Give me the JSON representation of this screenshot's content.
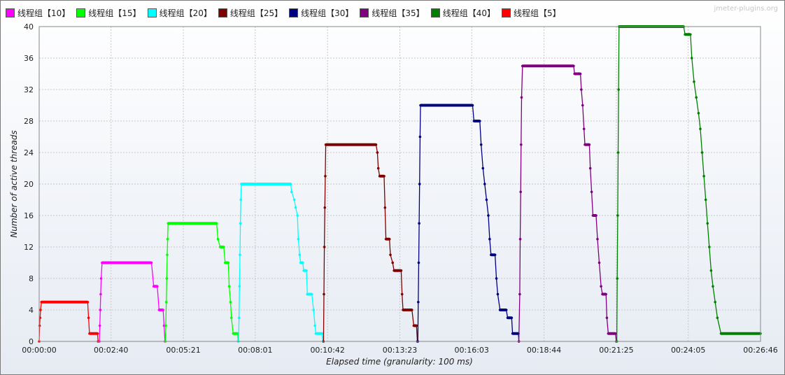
{
  "chart_data": {
    "type": "line",
    "title": "",
    "xlabel": "Elapsed time (granularity: 100 ms)",
    "ylabel": "Number of active threads",
    "watermark": "jmeter-plugins.org",
    "ylim": [
      0,
      40
    ],
    "y_ticks": [
      0,
      4,
      8,
      12,
      16,
      20,
      24,
      28,
      32,
      36,
      40
    ],
    "xlim_seconds": [
      0,
      1606
    ],
    "x_ticks": [
      {
        "t": 0,
        "label": "00:00:00"
      },
      {
        "t": 160,
        "label": "00:02:40"
      },
      {
        "t": 321,
        "label": "00:05:21"
      },
      {
        "t": 481,
        "label": "00:08:01"
      },
      {
        "t": 642,
        "label": "00:10:42"
      },
      {
        "t": 803,
        "label": "00:13:23"
      },
      {
        "t": 963,
        "label": "00:16:03"
      },
      {
        "t": 1124,
        "label": "00:18:44"
      },
      {
        "t": 1285,
        "label": "00:21:25"
      },
      {
        "t": 1445,
        "label": "00:24:05"
      },
      {
        "t": 1606,
        "label": "00:26:46"
      }
    ],
    "grid": true,
    "legend_position": "top",
    "series": [
      {
        "name": "线程组【10】",
        "color": "#ff00ff",
        "points": [
          [
            134,
            0
          ],
          [
            135,
            2
          ],
          [
            136,
            4
          ],
          [
            137,
            6
          ],
          [
            138,
            8
          ],
          [
            140,
            10
          ],
          [
            250,
            10
          ],
          [
            255,
            7
          ],
          [
            263,
            7
          ],
          [
            267,
            4
          ],
          [
            276,
            4
          ],
          [
            278,
            2
          ],
          [
            280,
            0
          ]
        ]
      },
      {
        "name": "线程组【15】",
        "color": "#00ff00",
        "points": [
          [
            281,
            0
          ],
          [
            282,
            2
          ],
          [
            283,
            5
          ],
          [
            284,
            8
          ],
          [
            285,
            11
          ],
          [
            286,
            13
          ],
          [
            287,
            15
          ],
          [
            395,
            15
          ],
          [
            398,
            13
          ],
          [
            403,
            12
          ],
          [
            411,
            12
          ],
          [
            414,
            10
          ],
          [
            421,
            10
          ],
          [
            423,
            7
          ],
          [
            426,
            5
          ],
          [
            428,
            3
          ],
          [
            432,
            1
          ],
          [
            442,
            1
          ],
          [
            443,
            0
          ]
        ]
      },
      {
        "name": "线程组【20】",
        "color": "#00ffff",
        "points": [
          [
            444,
            0
          ],
          [
            445,
            3
          ],
          [
            446,
            7
          ],
          [
            447,
            11
          ],
          [
            448,
            15
          ],
          [
            449,
            18
          ],
          [
            450,
            20
          ],
          [
            560,
            20
          ],
          [
            562,
            19
          ],
          [
            568,
            18
          ],
          [
            571,
            17
          ],
          [
            575,
            16
          ],
          [
            577,
            13
          ],
          [
            580,
            11
          ],
          [
            582,
            10
          ],
          [
            587,
            10
          ],
          [
            589,
            9
          ],
          [
            595,
            9
          ],
          [
            597,
            6
          ],
          [
            607,
            6
          ],
          [
            611,
            4
          ],
          [
            614,
            2
          ],
          [
            616,
            1
          ],
          [
            630,
            1
          ],
          [
            632,
            0
          ]
        ]
      },
      {
        "name": "线程组【25】",
        "color": "#800000",
        "points": [
          [
            633,
            0
          ],
          [
            634,
            6
          ],
          [
            635,
            12
          ],
          [
            636,
            17
          ],
          [
            637,
            21
          ],
          [
            638,
            25
          ],
          [
            750,
            25
          ],
          [
            753,
            24
          ],
          [
            755,
            22
          ],
          [
            758,
            21
          ],
          [
            768,
            21
          ],
          [
            770,
            17
          ],
          [
            772,
            13
          ],
          [
            780,
            13
          ],
          [
            782,
            11
          ],
          [
            787,
            10
          ],
          [
            790,
            9
          ],
          [
            806,
            9
          ],
          [
            808,
            6
          ],
          [
            810,
            4
          ],
          [
            830,
            4
          ],
          [
            834,
            2
          ],
          [
            840,
            2
          ],
          [
            842,
            0
          ]
        ]
      },
      {
        "name": "线程组【30】",
        "color": "#000080",
        "points": [
          [
            843,
            0
          ],
          [
            844,
            5
          ],
          [
            845,
            10
          ],
          [
            846,
            15
          ],
          [
            847,
            20
          ],
          [
            848,
            26
          ],
          [
            849,
            30
          ],
          [
            965,
            30
          ],
          [
            968,
            28
          ],
          [
            981,
            28
          ],
          [
            984,
            25
          ],
          [
            988,
            22
          ],
          [
            992,
            20
          ],
          [
            996,
            18
          ],
          [
            1000,
            16
          ],
          [
            1003,
            13
          ],
          [
            1006,
            11
          ],
          [
            1015,
            11
          ],
          [
            1018,
            8
          ],
          [
            1021,
            6
          ],
          [
            1026,
            4
          ],
          [
            1040,
            4
          ],
          [
            1043,
            3
          ],
          [
            1052,
            3
          ],
          [
            1054,
            1
          ],
          [
            1067,
            1
          ],
          [
            1068,
            0
          ]
        ]
      },
      {
        "name": "线程组【35】",
        "color": "#800080",
        "points": [
          [
            1068,
            0
          ],
          [
            1070,
            6
          ],
          [
            1071,
            13
          ],
          [
            1072,
            19
          ],
          [
            1073,
            25
          ],
          [
            1074,
            31
          ],
          [
            1076,
            35
          ],
          [
            1190,
            35
          ],
          [
            1192,
            34
          ],
          [
            1205,
            34
          ],
          [
            1207,
            32
          ],
          [
            1210,
            30
          ],
          [
            1213,
            27
          ],
          [
            1215,
            25
          ],
          [
            1225,
            25
          ],
          [
            1227,
            22
          ],
          [
            1230,
            19
          ],
          [
            1233,
            16
          ],
          [
            1240,
            16
          ],
          [
            1243,
            13
          ],
          [
            1247,
            10
          ],
          [
            1251,
            7
          ],
          [
            1254,
            6
          ],
          [
            1262,
            6
          ],
          [
            1264,
            3
          ],
          [
            1267,
            1
          ],
          [
            1283,
            1
          ],
          [
            1285,
            0
          ]
        ]
      },
      {
        "name": "线程组【40】",
        "color": "#008000",
        "points": [
          [
            1286,
            0
          ],
          [
            1287,
            8
          ],
          [
            1288,
            16
          ],
          [
            1289,
            24
          ],
          [
            1290,
            32
          ],
          [
            1291,
            40
          ],
          [
            1435,
            40
          ],
          [
            1438,
            39
          ],
          [
            1450,
            39
          ],
          [
            1453,
            36
          ],
          [
            1458,
            33
          ],
          [
            1463,
            31
          ],
          [
            1468,
            29
          ],
          [
            1472,
            27
          ],
          [
            1476,
            24
          ],
          [
            1480,
            21
          ],
          [
            1484,
            18
          ],
          [
            1488,
            15
          ],
          [
            1492,
            12
          ],
          [
            1496,
            9
          ],
          [
            1500,
            7
          ],
          [
            1505,
            5
          ],
          [
            1510,
            3
          ],
          [
            1518,
            1
          ],
          [
            1606,
            1
          ]
        ]
      },
      {
        "name": "线程组【5】",
        "color": "#ff0000",
        "points": [
          [
            0,
            0
          ],
          [
            1,
            2
          ],
          [
            2,
            3
          ],
          [
            3,
            4
          ],
          [
            5,
            5
          ],
          [
            108,
            5
          ],
          [
            110,
            3
          ],
          [
            112,
            1
          ],
          [
            130,
            1
          ],
          [
            131,
            0
          ]
        ]
      }
    ]
  }
}
